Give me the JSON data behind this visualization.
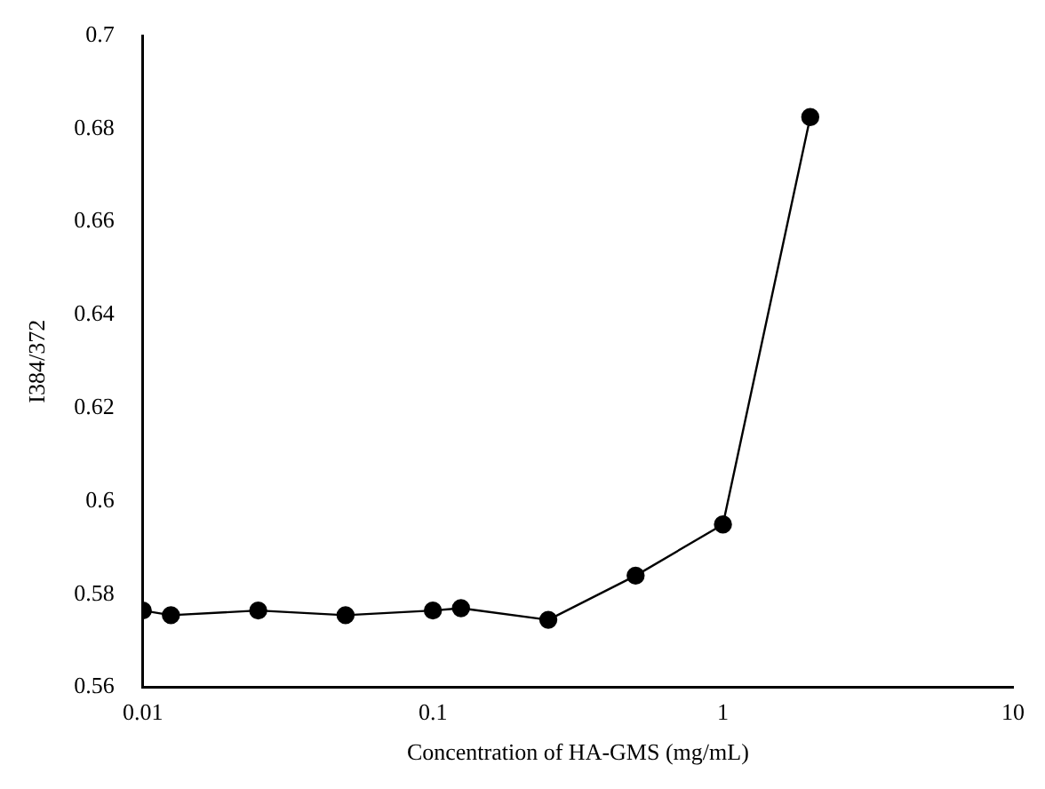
{
  "chart_data": {
    "type": "line",
    "xlabel": "Concentration of HA-GMS (mg/mL)",
    "ylabel": "I384/372",
    "x": [
      0.01,
      0.0125,
      0.025,
      0.05,
      0.1,
      0.125,
      0.25,
      0.5,
      1,
      2
    ],
    "values": [
      0.5765,
      0.5755,
      0.5765,
      0.5755,
      0.5765,
      0.577,
      0.5745,
      0.584,
      0.595,
      0.6825
    ],
    "color": "#000000",
    "marker": "circle",
    "log": "x",
    "xlim": [
      0.01,
      10
    ],
    "xticks": [
      0.01,
      0.1,
      1,
      10
    ],
    "ylim": [
      0.56,
      0.7
    ],
    "yticks": [
      0.56,
      0.58,
      0.6,
      0.62,
      0.64,
      0.66,
      0.68,
      0.7
    ],
    "grid": false,
    "legend": false
  }
}
